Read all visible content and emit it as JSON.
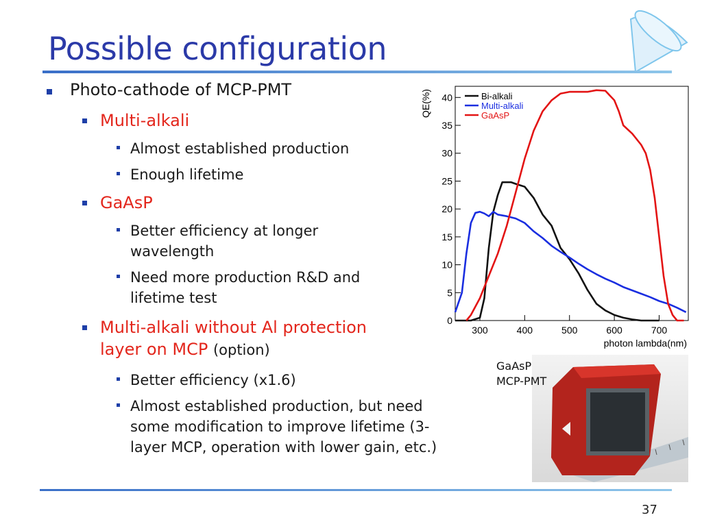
{
  "slide": {
    "title": "Possible configuration",
    "page_number": "37"
  },
  "bullets": {
    "l1": "Photo-cathode of MCP-PMT",
    "multi_alkali": "Multi-alkali",
    "multi_alkali_items": [
      "Almost established production",
      "Enough lifetime"
    ],
    "gaasp": "GaAsP",
    "gaasp_items": [
      "Better efficiency at longer wavelength",
      "Need more production R&D and lifetime test"
    ],
    "noal_line1": "Multi-alkali without Al protection",
    "noal_line2": "layer on MCP",
    "noal_option": "(option)",
    "noal_items": [
      "Better efficiency (x1.6)",
      "Almost established production, but need some modification to improve lifetime (3-layer MCP, operation with lower gain, etc.)"
    ]
  },
  "photo": {
    "caption_line1": "GaAsP",
    "caption_line2": "MCP-PMT",
    "subject": "red-square-mcp-pmt-with-ruler"
  },
  "colors": {
    "title": "#2b3aa8",
    "accent_red": "#e3261c",
    "bullet_marker": "#1e3fa8",
    "rule": "#3a6fc8"
  },
  "chart_data": {
    "type": "line",
    "xlabel": "photon lambda(nm)",
    "ylabel": "QE(%)",
    "xlim": [
      245,
      765
    ],
    "ylim": [
      0,
      42
    ],
    "xticks": [
      300,
      400,
      500,
      600,
      700
    ],
    "yticks": [
      0,
      5,
      10,
      15,
      20,
      25,
      30,
      35,
      40
    ],
    "legend_position": "top-left",
    "grid": false,
    "series": [
      {
        "name": "Bi-alkali",
        "color": "#111111",
        "x": [
          245,
          280,
          300,
          310,
          320,
          330,
          340,
          350,
          370,
          380,
          400,
          420,
          440,
          460,
          480,
          500,
          520,
          540,
          560,
          580,
          600,
          620,
          640,
          660,
          680,
          700
        ],
        "y": [
          0,
          0,
          0.5,
          4,
          13,
          19.5,
          22.5,
          24.8,
          24.8,
          24.5,
          24,
          22,
          19,
          17,
          13,
          11,
          8.5,
          5.5,
          3,
          1.8,
          1,
          0.5,
          0.2,
          0,
          0,
          0
        ]
      },
      {
        "name": "Multi-alkali",
        "color": "#1a2ee0",
        "x": [
          245,
          260,
          270,
          280,
          290,
          300,
          310,
          320,
          330,
          340,
          360,
          380,
          400,
          420,
          440,
          460,
          480,
          500,
          520,
          540,
          560,
          580,
          600,
          620,
          640,
          660,
          680,
          700,
          720,
          740,
          760
        ],
        "y": [
          1.5,
          5,
          12,
          17.5,
          19.3,
          19.5,
          19.2,
          18.7,
          19.5,
          19,
          18.7,
          18.3,
          17.5,
          16,
          14.8,
          13.4,
          12.3,
          11.3,
          10.2,
          9.2,
          8.3,
          7.5,
          6.8,
          6,
          5.4,
          4.8,
          4.2,
          3.5,
          3,
          2.3,
          1.5
        ]
      },
      {
        "name": "GaAsP",
        "color": "#e31414",
        "x": [
          270,
          280,
          300,
          320,
          340,
          360,
          380,
          400,
          420,
          440,
          460,
          480,
          500,
          520,
          540,
          560,
          580,
          600,
          610,
          620,
          640,
          660,
          670,
          680,
          690,
          700,
          710,
          720,
          730,
          740,
          755
        ],
        "y": [
          0,
          1,
          4,
          8,
          12,
          17,
          23,
          29,
          34,
          37.5,
          39.5,
          40.7,
          41,
          41,
          41,
          41.3,
          41.2,
          39.5,
          37.5,
          35,
          33.5,
          31.5,
          30,
          27,
          22,
          15,
          8,
          3,
          1,
          0,
          0
        ]
      }
    ]
  }
}
